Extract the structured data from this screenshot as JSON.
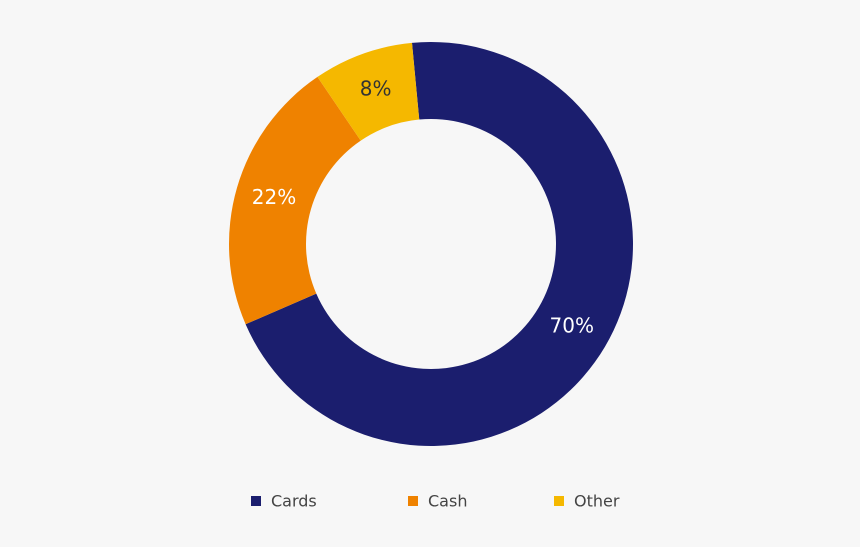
{
  "chart_data": {
    "type": "donut",
    "categories": [
      "Cards",
      "Cash",
      "Other"
    ],
    "values": [
      70,
      22,
      8
    ],
    "value_labels": [
      "70%",
      "22%",
      "8%"
    ],
    "colors": [
      "#1b1e6e",
      "#ef8200",
      "#f5b800"
    ]
  }
}
